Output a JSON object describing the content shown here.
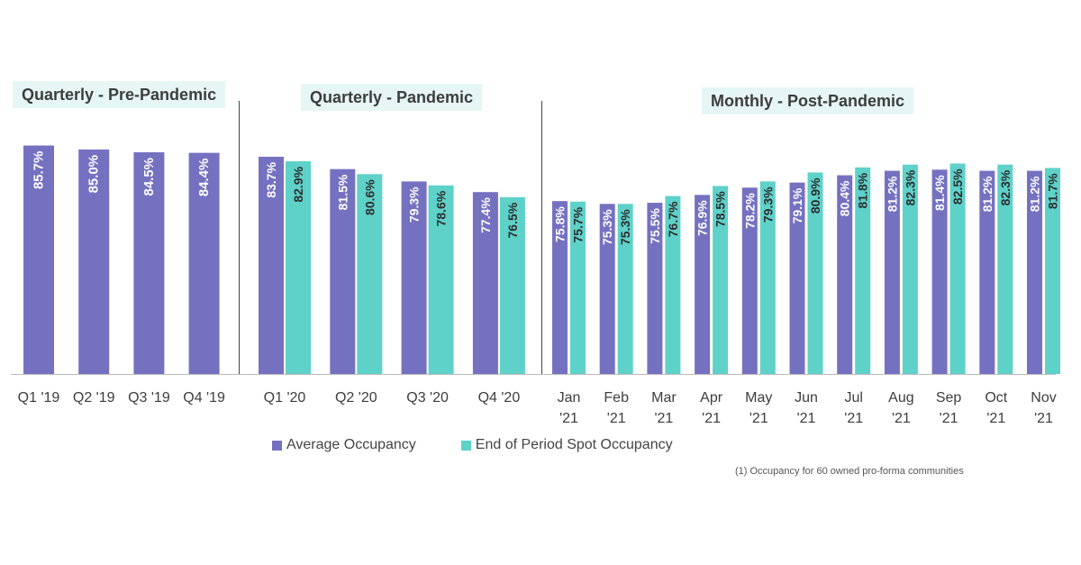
{
  "colors": {
    "average": "#7571c1",
    "spot": "#5ed1c9",
    "label": "#2e2e2e",
    "axis": "#555555"
  },
  "chart_data": [
    {
      "type": "bar",
      "title": "Quarterly - Pre-Pandemic",
      "categories": [
        "Q1 '19",
        "Q2 '19",
        "Q3 '19",
        "Q4 '19"
      ],
      "series": [
        {
          "name": "Average Occupancy",
          "values": [
            85.7,
            85.0,
            84.5,
            84.4
          ],
          "labels": [
            "85.7%",
            "85.0%",
            "84.5%",
            "84.4%"
          ]
        }
      ]
    },
    {
      "type": "bar",
      "title": "Quarterly - Pandemic",
      "categories": [
        "Q1 '20",
        "Q2 '20",
        "Q3 '20",
        "Q4 '20"
      ],
      "series": [
        {
          "name": "Average Occupancy",
          "values": [
            83.7,
            81.5,
            79.3,
            77.4
          ],
          "labels": [
            "83.7%",
            "81.5%",
            "79.3%",
            "77.4%"
          ]
        },
        {
          "name": "End of Period Spot Occupancy",
          "values": [
            82.9,
            80.6,
            78.6,
            76.5
          ],
          "labels": [
            "82.9%",
            "80.6%",
            "78.6%",
            "76.5%"
          ]
        }
      ]
    },
    {
      "type": "bar",
      "title": "Monthly - Post-Pandemic",
      "categories": [
        "Jan '21",
        "Feb '21",
        "Mar '21",
        "Apr '21",
        "May '21",
        "Jun '21",
        "Jul '21",
        "Aug '21",
        "Sep '21",
        "Oct '21",
        "Nov '21"
      ],
      "series": [
        {
          "name": "Average Occupancy",
          "values": [
            75.8,
            75.3,
            75.5,
            76.9,
            78.2,
            79.1,
            80.4,
            81.2,
            81.4,
            81.2,
            81.2
          ],
          "labels": [
            "75.8%",
            "75.3%",
            "75.5%",
            "76.9%",
            "78.2%",
            "79.1%",
            "80.4%",
            "81.2%",
            "81.4%",
            "81.2%",
            "81.2%"
          ]
        },
        {
          "name": "End of Period Spot Occupancy",
          "values": [
            75.7,
            75.3,
            76.7,
            78.5,
            79.3,
            80.9,
            81.8,
            82.3,
            82.5,
            82.3,
            81.7
          ],
          "labels": [
            "75.7%",
            "75.3%",
            "76.7%",
            "78.5%",
            "79.3%",
            "80.9%",
            "81.8%",
            "82.3%",
            "82.5%",
            "82.3%",
            "81.7%"
          ]
        }
      ]
    }
  ],
  "legend": {
    "average": "Average Occupancy",
    "spot": "End of Period Spot Occupancy"
  },
  "footnote": "(1)   Occupancy for 60 owned pro-forma communities"
}
